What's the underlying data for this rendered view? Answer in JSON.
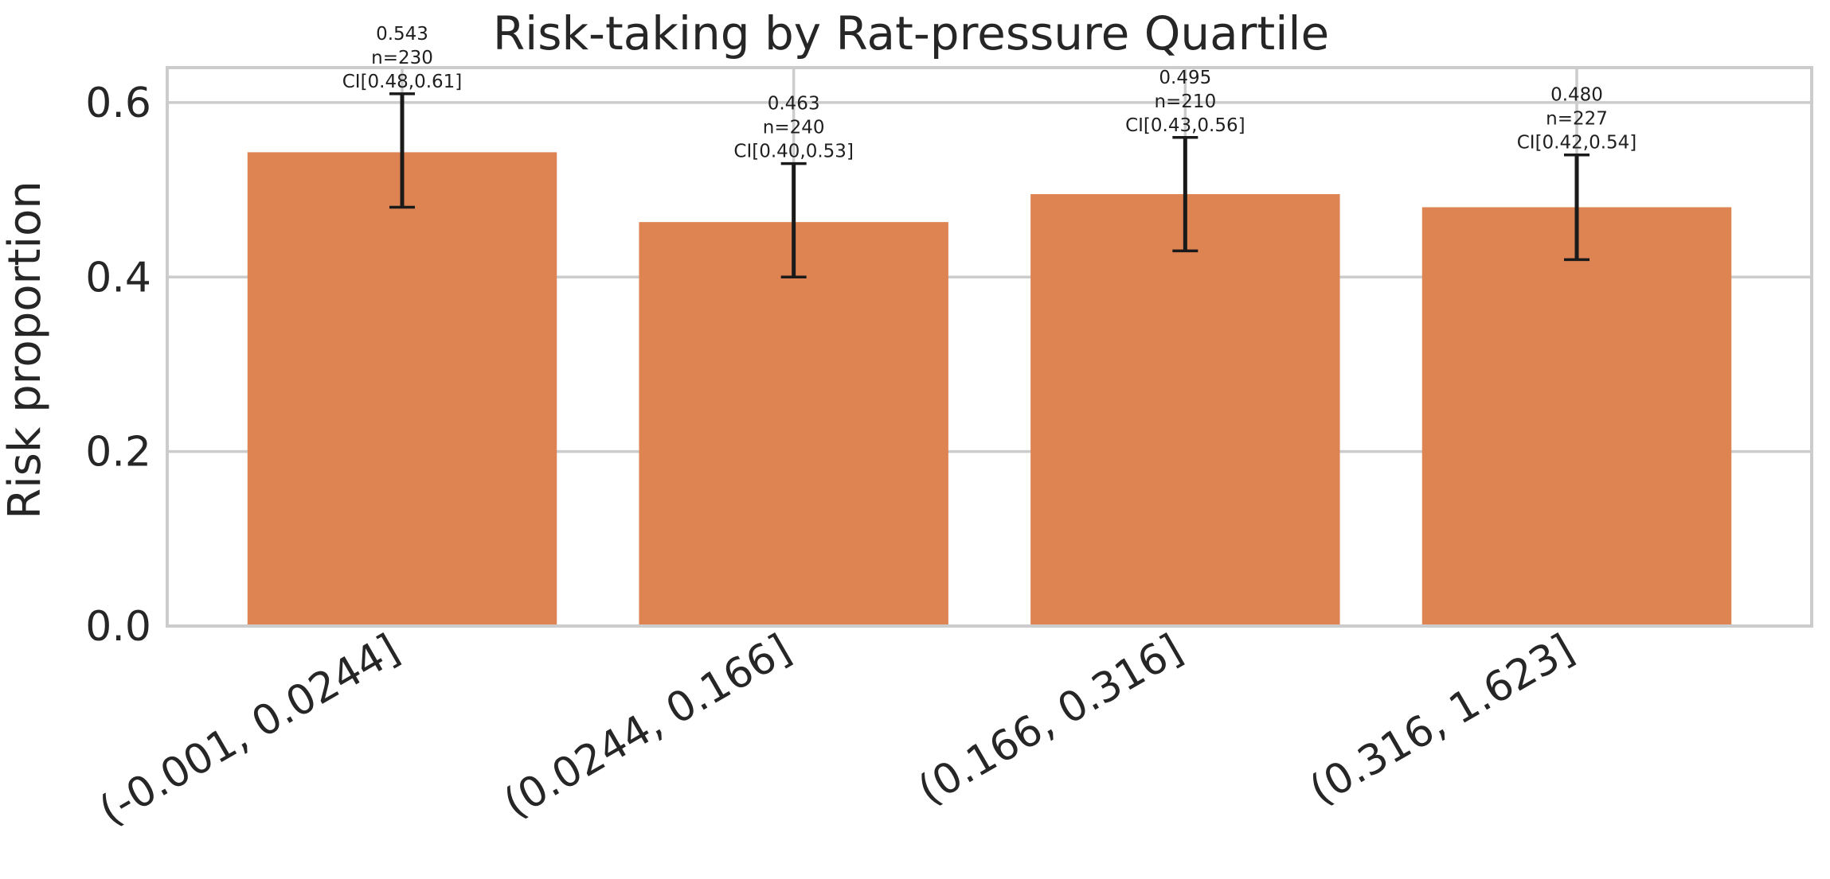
{
  "chart_data": {
    "type": "bar",
    "title": "Risk-taking by Rat-pressure Quartile",
    "xlabel": "",
    "ylabel": "Risk proportion",
    "ylim": [
      0,
      0.64
    ],
    "yticks": [
      "0.0",
      "0.2",
      "0.4",
      "0.6"
    ],
    "grid": true,
    "categories": [
      "(-0.001, 0.0244]",
      "(0.0244, 0.166]",
      "(0.166, 0.316]",
      "(0.316, 1.623]"
    ],
    "values": [
      0.543,
      0.463,
      0.495,
      0.48
    ],
    "ci_low": [
      0.48,
      0.4,
      0.43,
      0.42
    ],
    "ci_high": [
      0.61,
      0.53,
      0.56,
      0.54
    ],
    "annotations": [
      [
        "0.543",
        "n=230",
        "CI[0.48,0.61]"
      ],
      [
        "0.463",
        "n=240",
        "CI[0.40,0.53]"
      ],
      [
        "0.495",
        "n=210",
        "CI[0.43,0.56]"
      ],
      [
        "0.480",
        "n=227",
        "CI[0.42,0.54]"
      ]
    ],
    "colors": {
      "bar": "#dd8452",
      "errorbar": "#1a1a1a",
      "grid": "#cccccc",
      "text": "#262626"
    }
  }
}
